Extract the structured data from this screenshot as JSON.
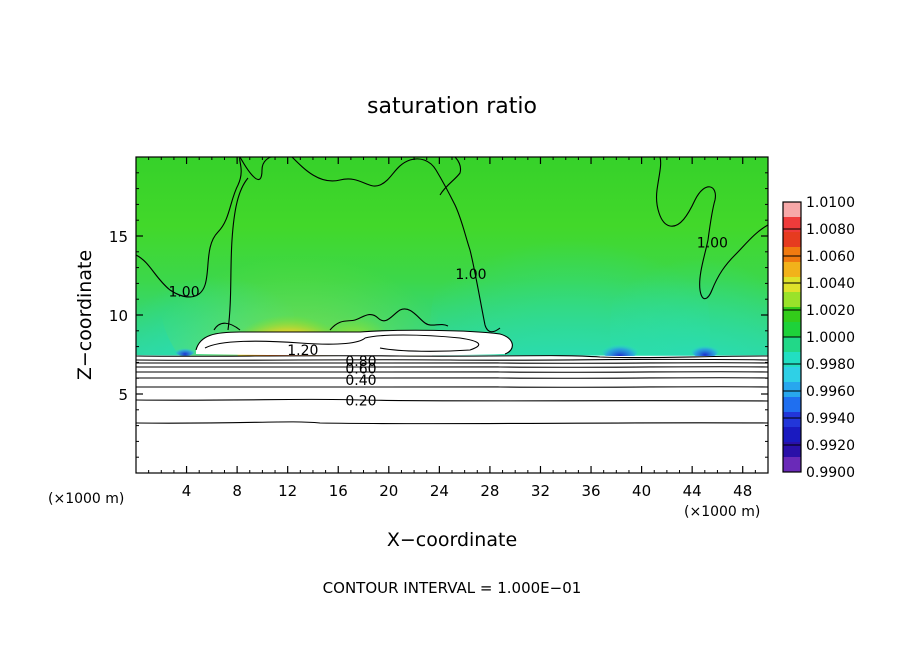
{
  "chart_data": {
    "type": "heatmap",
    "title": "saturation ratio",
    "xlabel": "X−coordinate",
    "ylabel": "Z−coordinate",
    "x_unit_left": "(×1000 m)",
    "x_unit_right": "(×1000 m)",
    "footer": "CONTOUR INTERVAL = 1.000E−01",
    "xlim": [
      0,
      50
    ],
    "ylim": [
      0,
      20
    ],
    "x_ticks": [
      4,
      8,
      12,
      16,
      20,
      24,
      28,
      32,
      36,
      40,
      44,
      48
    ],
    "x_tick_labels": [
      "4",
      "8",
      "12",
      "16",
      "20",
      "24",
      "28",
      "32",
      "36",
      "40",
      "44",
      "48"
    ],
    "y_ticks": [
      5,
      10,
      15
    ],
    "y_tick_labels": [
      "5",
      "10",
      "15"
    ],
    "colorbar": {
      "range": [
        0.99,
        1.01
      ],
      "labels": [
        "1.0100",
        "1.0080",
        "1.0060",
        "1.0040",
        "1.0020",
        "1.0000",
        "0.9980",
        "0.9960",
        "0.9940",
        "0.9920",
        "0.9900"
      ],
      "bands_top_to_bottom": [
        "#f7a8a8",
        "#ef3b3b",
        "#e63b1f",
        "#f07a10",
        "#f2b21a",
        "#dfe22a",
        "#9ae22a",
        "#33cc1a",
        "#1ed23a",
        "#22d888",
        "#22dfc2",
        "#2fd0e6",
        "#28a7ee",
        "#1f6ff0",
        "#2236d9",
        "#1a1ac0",
        "#2a10a8",
        "#6a2ab8"
      ]
    },
    "contour_labels": [
      {
        "text": "1.00",
        "x": 3.8,
        "y": 11.5
      },
      {
        "text": "1.00",
        "x": 26.5,
        "y": 12.6
      },
      {
        "text": "1.00",
        "x": 45.6,
        "y": 14.6
      },
      {
        "text": "1.20",
        "x": 13.2,
        "y": 7.8
      },
      {
        "text": "0.80",
        "x": 17.8,
        "y": 7.1
      },
      {
        "text": "0.60",
        "x": 17.8,
        "y": 6.6
      },
      {
        "text": "0.40",
        "x": 17.8,
        "y": 5.9
      },
      {
        "text": "0.20",
        "x": 17.8,
        "y": 4.6
      }
    ],
    "levels": [
      {
        "value": 0.1,
        "z": 3.25
      },
      {
        "value": 0.2,
        "z": 4.6
      },
      {
        "value": 0.3,
        "z": 5.3
      },
      {
        "value": 0.4,
        "z": 5.9
      },
      {
        "value": 0.5,
        "z": 6.3
      },
      {
        "value": 0.6,
        "z": 6.6
      },
      {
        "value": 0.7,
        "z": 6.85
      },
      {
        "value": 0.8,
        "z": 7.05
      },
      {
        "value": 0.9,
        "z": 7.25
      }
    ]
  }
}
